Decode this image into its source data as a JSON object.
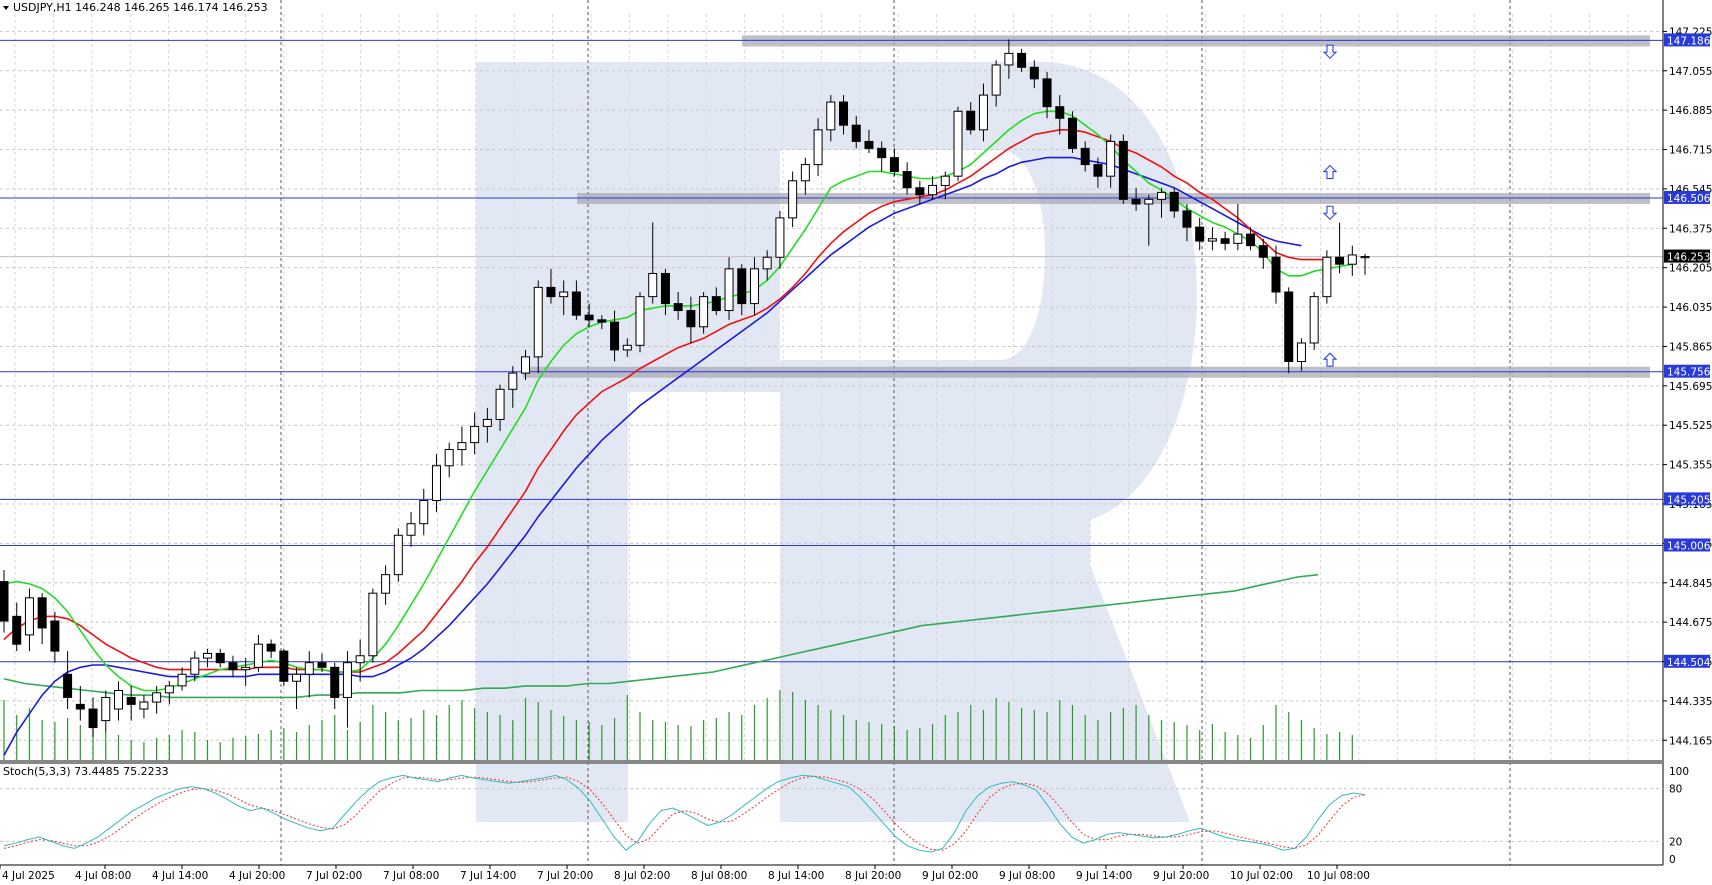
{
  "chart_title": "USDJPY,H1  146.248 146.265 146.174 146.253",
  "colors": {
    "hline": "#2a3ad8",
    "ma_fast": "#22dd22",
    "ma_mid": "#ee1111",
    "ma_slow": "#1a1ae0",
    "ma_long": "#33aa55",
    "volume": "#2a9a2a",
    "stoch_main": "#33bbbb",
    "stoch_signal": "#ee3333",
    "zone": "#a8aab4",
    "arrow": "#3344dd",
    "watermark": "#e2e8f3"
  },
  "chart_data": {
    "type": "candlestick",
    "symbol": "USDJPY",
    "timeframe": "H1",
    "ohlc_header": {
      "open": 146.248,
      "high": 146.265,
      "low": 146.174,
      "close": 146.253
    },
    "ylim": [
      144.08,
      147.3
    ],
    "y_ticks": [
      "147.225",
      "147.055",
      "146.885",
      "146.715",
      "146.545",
      "146.375",
      "146.205",
      "146.035",
      "145.865",
      "145.695",
      "145.525",
      "145.355",
      "145.185",
      "145.015",
      "144.845",
      "144.675",
      "144.505",
      "144.335",
      "144.165"
    ],
    "x_ticks": [
      "4 Jul 2025",
      "4 Jul 08:00",
      "4 Jul 14:00",
      "4 Jul 20:00",
      "7 Jul 02:00",
      "7 Jul 08:00",
      "7 Jul 14:00",
      "7 Jul 20:00",
      "8 Jul 02:00",
      "8 Jul 08:00",
      "8 Jul 14:00",
      "8 Jul 20:00",
      "9 Jul 02:00",
      "9 Jul 08:00",
      "9 Jul 14:00",
      "9 Jul 20:00",
      "10 Jul 02:00",
      "10 Jul 08:00"
    ],
    "level_lines": [
      "147.186",
      "146.506",
      "146.253",
      "145.756",
      "145.205",
      "145.006",
      "144.504"
    ],
    "current_price": "146.253",
    "candles": [
      [
        144.85,
        144.9,
        144.63,
        144.68
      ],
      [
        144.7,
        144.76,
        144.55,
        144.58
      ],
      [
        144.62,
        144.82,
        144.55,
        144.78
      ],
      [
        144.78,
        144.8,
        144.58,
        144.65
      ],
      [
        144.68,
        144.72,
        144.5,
        144.55
      ],
      [
        144.45,
        144.55,
        144.3,
        144.35
      ],
      [
        144.32,
        144.4,
        144.25,
        144.3
      ],
      [
        144.3,
        144.35,
        144.18,
        144.22
      ],
      [
        144.25,
        144.38,
        144.2,
        144.35
      ],
      [
        144.3,
        144.42,
        144.25,
        144.38
      ],
      [
        144.35,
        144.4,
        144.25,
        144.32
      ],
      [
        144.3,
        144.36,
        144.26,
        144.33
      ],
      [
        144.33,
        144.4,
        144.28,
        144.37
      ],
      [
        144.37,
        144.42,
        144.32,
        144.4
      ],
      [
        144.4,
        144.48,
        144.38,
        144.45
      ],
      [
        144.45,
        144.55,
        144.42,
        144.52
      ],
      [
        144.52,
        144.56,
        144.48,
        144.54
      ],
      [
        144.54,
        144.56,
        144.48,
        144.5
      ],
      [
        144.5,
        144.53,
        144.44,
        144.47
      ],
      [
        144.47,
        144.52,
        144.4,
        144.48
      ],
      [
        144.48,
        144.62,
        144.46,
        144.58
      ],
      [
        144.58,
        144.6,
        144.52,
        144.55
      ],
      [
        144.55,
        144.56,
        144.4,
        144.42
      ],
      [
        144.42,
        144.48,
        144.3,
        144.45
      ],
      [
        144.45,
        144.55,
        144.35,
        144.5
      ],
      [
        144.5,
        144.54,
        144.46,
        144.48
      ],
      [
        144.48,
        144.5,
        144.3,
        144.35
      ],
      [
        144.35,
        144.55,
        144.22,
        144.5
      ],
      [
        144.5,
        144.6,
        144.42,
        144.53
      ],
      [
        144.53,
        144.82,
        144.5,
        144.8
      ],
      [
        144.8,
        144.92,
        144.75,
        144.88
      ],
      [
        144.88,
        145.08,
        144.85,
        145.05
      ],
      [
        145.05,
        145.15,
        145.0,
        145.1
      ],
      [
        145.1,
        145.25,
        145.05,
        145.2
      ],
      [
        145.2,
        145.4,
        145.15,
        145.35
      ],
      [
        145.35,
        145.45,
        145.3,
        145.42
      ],
      [
        145.42,
        145.52,
        145.35,
        145.45
      ],
      [
        145.45,
        145.58,
        145.4,
        145.52
      ],
      [
        145.52,
        145.6,
        145.45,
        145.55
      ],
      [
        145.55,
        145.7,
        145.5,
        145.68
      ],
      [
        145.68,
        145.78,
        145.6,
        145.75
      ],
      [
        145.75,
        145.85,
        145.72,
        145.82
      ],
      [
        145.82,
        146.15,
        145.75,
        146.12
      ],
      [
        146.12,
        146.2,
        146.05,
        146.08
      ],
      [
        146.08,
        146.15,
        146.0,
        146.1
      ],
      [
        146.1,
        146.15,
        145.98,
        146.0
      ],
      [
        146.0,
        146.05,
        145.95,
        145.98
      ],
      [
        145.98,
        146.0,
        145.94,
        145.97
      ],
      [
        145.97,
        146.02,
        145.8,
        145.85
      ],
      [
        145.85,
        145.9,
        145.82,
        145.87
      ],
      [
        145.87,
        146.1,
        145.84,
        146.08
      ],
      [
        146.08,
        146.4,
        146.05,
        146.18
      ],
      [
        146.18,
        146.2,
        146.0,
        146.05
      ],
      [
        146.05,
        146.1,
        145.98,
        146.02
      ],
      [
        146.02,
        146.08,
        145.88,
        145.95
      ],
      [
        145.95,
        146.1,
        145.92,
        146.08
      ],
      [
        146.08,
        146.12,
        146.0,
        146.02
      ],
      [
        146.02,
        146.25,
        145.98,
        146.2
      ],
      [
        146.2,
        146.22,
        146.0,
        146.05
      ],
      [
        146.05,
        146.25,
        146.0,
        146.2
      ],
      [
        146.2,
        146.28,
        146.15,
        146.25
      ],
      [
        146.25,
        146.45,
        146.2,
        146.42
      ],
      [
        146.42,
        146.62,
        146.38,
        146.58
      ],
      [
        146.58,
        146.68,
        146.52,
        146.65
      ],
      [
        146.65,
        146.85,
        146.6,
        146.8
      ],
      [
        146.8,
        146.95,
        146.75,
        146.92
      ],
      [
        146.92,
        146.95,
        146.78,
        146.82
      ],
      [
        146.82,
        146.86,
        146.72,
        146.75
      ],
      [
        146.75,
        146.8,
        146.7,
        146.72
      ],
      [
        146.72,
        146.75,
        146.62,
        146.68
      ],
      [
        146.68,
        146.72,
        146.6,
        146.62
      ],
      [
        146.62,
        146.66,
        146.52,
        146.55
      ],
      [
        146.55,
        146.58,
        146.48,
        146.52
      ],
      [
        146.52,
        146.6,
        146.5,
        146.56
      ],
      [
        146.56,
        146.62,
        146.5,
        146.6
      ],
      [
        146.6,
        146.9,
        146.58,
        146.88
      ],
      [
        146.88,
        146.92,
        146.78,
        146.8
      ],
      [
        146.8,
        147.0,
        146.75,
        146.95
      ],
      [
        146.95,
        147.1,
        146.9,
        147.08
      ],
      [
        147.08,
        147.19,
        147.02,
        147.13
      ],
      [
        147.13,
        147.15,
        147.05,
        147.07
      ],
      [
        147.07,
        147.1,
        146.98,
        147.02
      ],
      [
        147.02,
        147.05,
        146.85,
        146.9
      ],
      [
        146.9,
        146.95,
        146.78,
        146.85
      ],
      [
        146.85,
        146.88,
        146.7,
        146.72
      ],
      [
        146.72,
        146.75,
        146.62,
        146.65
      ],
      [
        146.65,
        146.68,
        146.55,
        146.6
      ],
      [
        146.6,
        146.78,
        146.55,
        146.75
      ],
      [
        146.75,
        146.78,
        146.48,
        146.5
      ],
      [
        146.5,
        146.55,
        146.45,
        146.48
      ],
      [
        146.48,
        146.52,
        146.3,
        146.5
      ],
      [
        146.5,
        146.55,
        146.42,
        146.53
      ],
      [
        146.53,
        146.55,
        146.42,
        146.45
      ],
      [
        146.45,
        146.48,
        146.32,
        146.38
      ],
      [
        146.38,
        146.42,
        146.28,
        146.32
      ],
      [
        146.32,
        146.38,
        146.28,
        146.33
      ],
      [
        146.33,
        146.36,
        146.28,
        146.31
      ],
      [
        146.31,
        146.48,
        146.28,
        146.35
      ],
      [
        146.35,
        146.38,
        146.28,
        146.3
      ],
      [
        146.3,
        146.33,
        146.2,
        146.25
      ],
      [
        146.25,
        146.3,
        146.05,
        146.1
      ],
      [
        146.1,
        146.12,
        145.75,
        145.8
      ],
      [
        145.8,
        145.9,
        145.76,
        145.88
      ],
      [
        145.88,
        146.1,
        145.85,
        146.08
      ],
      [
        146.08,
        146.28,
        146.05,
        146.25
      ],
      [
        146.25,
        146.4,
        146.18,
        146.22
      ],
      [
        146.22,
        146.3,
        146.17,
        146.26
      ],
      [
        146.248,
        146.265,
        146.174,
        146.253
      ]
    ],
    "ma_fast_values": [
      144.84,
      144.85,
      144.84,
      144.82,
      144.78,
      144.72,
      144.64,
      144.56,
      144.49,
      144.44,
      144.4,
      144.38,
      144.38,
      144.39,
      144.41,
      144.43,
      144.45,
      144.47,
      144.48,
      144.49,
      144.5,
      144.51,
      144.5,
      144.48,
      144.47,
      144.47,
      144.46,
      144.46,
      144.47,
      144.52,
      144.58,
      144.66,
      144.75,
      144.84,
      144.94,
      145.04,
      145.14,
      145.24,
      145.33,
      145.42,
      145.51,
      145.6,
      145.72,
      145.8,
      145.87,
      145.92,
      145.95,
      145.97,
      145.98,
      145.99,
      146.02,
      146.03,
      146.04,
      146.04,
      146.04,
      146.05,
      146.06,
      146.08,
      146.09,
      146.11,
      146.15,
      146.21,
      146.29,
      146.37,
      146.46,
      146.55,
      146.58,
      146.6,
      146.62,
      146.62,
      146.61,
      146.6,
      146.59,
      146.59,
      146.6,
      146.62,
      146.65,
      146.7,
      146.75,
      146.8,
      146.84,
      146.87,
      146.88,
      146.88,
      146.86,
      146.82,
      146.78,
      146.73,
      146.67,
      146.62,
      146.57,
      146.54,
      146.5,
      146.46,
      146.43,
      146.4,
      146.38,
      146.35,
      146.32,
      146.27,
      146.2,
      146.17,
      146.17,
      146.19,
      146.2,
      146.21,
      146.22
    ],
    "ma_mid_values": [
      144.6,
      144.65,
      144.68,
      144.7,
      144.7,
      144.69,
      144.66,
      144.62,
      144.58,
      144.55,
      144.52,
      144.5,
      144.48,
      144.47,
      144.47,
      144.47,
      144.47,
      144.47,
      144.47,
      144.47,
      144.48,
      144.48,
      144.48,
      144.47,
      144.47,
      144.47,
      144.46,
      144.46,
      144.46,
      144.48,
      144.5,
      144.54,
      144.59,
      144.64,
      144.71,
      144.78,
      144.85,
      144.93,
      145.0,
      145.08,
      145.16,
      145.24,
      145.34,
      145.42,
      145.5,
      145.57,
      145.62,
      145.67,
      145.7,
      145.73,
      145.77,
      145.8,
      145.83,
      145.86,
      145.88,
      145.9,
      145.93,
      145.96,
      145.98,
      146.0,
      146.03,
      146.07,
      146.12,
      146.18,
      146.25,
      146.31,
      146.36,
      146.4,
      146.44,
      146.47,
      146.49,
      146.5,
      146.51,
      146.52,
      146.54,
      146.57,
      146.6,
      146.64,
      146.68,
      146.72,
      146.75,
      146.78,
      146.79,
      146.8,
      146.8,
      146.79,
      146.77,
      146.75,
      146.72,
      146.7,
      146.67,
      146.64,
      146.6,
      146.57,
      146.53,
      146.5,
      146.46,
      146.42,
      146.37,
      146.32,
      146.27,
      146.25,
      146.24,
      146.24,
      146.24
    ],
    "ma_slow_values": [
      144.1,
      144.2,
      144.28,
      144.36,
      144.42,
      144.46,
      144.48,
      144.49,
      144.49,
      144.48,
      144.47,
      144.46,
      144.45,
      144.44,
      144.44,
      144.44,
      144.44,
      144.44,
      144.44,
      144.44,
      144.45,
      144.45,
      144.45,
      144.45,
      144.45,
      144.45,
      144.45,
      144.45,
      144.44,
      144.44,
      144.46,
      144.49,
      144.52,
      144.56,
      144.61,
      144.66,
      144.72,
      144.78,
      144.84,
      144.91,
      144.98,
      145.05,
      145.13,
      145.2,
      145.27,
      145.34,
      145.4,
      145.46,
      145.51,
      145.56,
      145.61,
      145.65,
      145.69,
      145.73,
      145.77,
      145.81,
      145.85,
      145.89,
      145.93,
      145.97,
      146.01,
      146.06,
      146.11,
      146.16,
      146.21,
      146.26,
      146.3,
      146.34,
      146.38,
      146.41,
      146.44,
      146.46,
      146.48,
      146.5,
      146.52,
      146.54,
      146.56,
      146.59,
      146.61,
      146.64,
      146.66,
      146.67,
      146.68,
      146.68,
      146.68,
      146.67,
      146.66,
      146.65,
      146.63,
      146.61,
      146.59,
      146.57,
      146.55,
      146.52,
      146.49,
      146.46,
      146.43,
      146.4,
      146.37,
      146.34,
      146.32,
      146.31,
      146.3
    ],
    "ma_long_values": [
      144.43,
      144.41,
      144.4,
      144.39,
      144.38,
      144.37,
      144.36,
      144.36,
      144.35,
      144.35,
      144.35,
      144.35,
      144.35,
      144.35,
      144.35,
      144.36,
      144.36,
      144.37,
      144.37,
      144.37,
      144.38,
      144.38,
      144.38,
      144.39,
      144.39,
      144.4,
      144.4,
      144.4,
      144.41,
      144.41,
      144.42,
      144.43,
      144.44,
      144.45,
      144.46,
      144.48,
      144.5,
      144.52,
      144.54,
      144.56,
      144.58,
      144.6,
      144.62,
      144.64,
      144.66,
      144.67,
      144.68,
      144.69,
      144.7,
      144.71,
      144.72,
      144.73,
      144.74,
      144.75,
      144.76,
      144.77,
      144.78,
      144.79,
      144.8,
      144.81,
      144.83,
      144.85,
      144.87,
      144.88
    ],
    "volume_values": [
      60,
      45,
      52,
      40,
      38,
      42,
      35,
      30,
      28,
      25,
      20,
      18,
      22,
      25,
      30,
      28,
      20,
      18,
      22,
      24,
      26,
      30,
      32,
      28,
      35,
      40,
      45,
      30,
      38,
      55,
      48,
      40,
      42,
      50,
      45,
      55,
      60,
      52,
      48,
      45,
      40,
      62,
      58,
      50,
      44,
      40,
      38,
      35,
      42,
      65,
      48,
      40,
      38,
      35,
      34,
      40,
      42,
      48,
      45,
      55,
      62,
      70,
      68,
      60,
      55,
      50,
      45,
      40,
      38,
      36,
      34,
      30,
      32,
      36,
      45,
      48,
      55,
      50,
      62,
      58,
      52,
      50,
      48,
      60,
      55,
      45,
      40,
      48,
      52,
      55,
      45,
      40,
      38,
      35,
      30,
      36,
      28,
      25,
      22,
      35,
      55,
      48,
      40,
      32,
      26,
      28,
      25
    ],
    "stoch": {
      "label": "Stoch(5,3,3) 73.4485 75.2233",
      "levels": [
        "100",
        "80",
        "20",
        "0"
      ],
      "k_values": [
        15,
        18,
        22,
        25,
        20,
        15,
        12,
        18,
        25,
        35,
        45,
        55,
        62,
        70,
        75,
        80,
        82,
        80,
        75,
        68,
        60,
        55,
        58,
        52,
        45,
        40,
        35,
        32,
        35,
        50,
        65,
        78,
        88,
        92,
        95,
        92,
        90,
        88,
        92,
        95,
        92,
        90,
        88,
        86,
        88,
        90,
        92,
        95,
        90,
        80,
        65,
        45,
        25,
        10,
        20,
        40,
        55,
        58,
        52,
        45,
        38,
        42,
        50,
        60,
        70,
        80,
        88,
        92,
        95,
        94,
        90,
        86,
        82,
        70,
        55,
        40,
        25,
        15,
        10,
        8,
        12,
        30,
        55,
        72,
        82,
        86,
        88,
        84,
        78,
        60,
        40,
        25,
        18,
        22,
        28,
        30,
        28,
        26,
        24,
        25,
        28,
        32,
        35,
        30,
        25,
        22,
        20,
        18,
        15,
        10,
        12,
        25,
        45,
        62,
        72,
        75,
        73
      ]
    },
    "stoch_signal_values": [
      12,
      15,
      19,
      22,
      21,
      18,
      15,
      15,
      19,
      26,
      35,
      45,
      54,
      62,
      69,
      75,
      79,
      80,
      78,
      74,
      68,
      61,
      58,
      55,
      50,
      45,
      40,
      36,
      34,
      39,
      50,
      64,
      77,
      86,
      92,
      93,
      92,
      90,
      90,
      92,
      93,
      92,
      90,
      88,
      87,
      88,
      90,
      92,
      93,
      88,
      78,
      63,
      45,
      27,
      18,
      23,
      38,
      51,
      55,
      52,
      45,
      42,
      43,
      51,
      60,
      70,
      79,
      87,
      92,
      94,
      93,
      90,
      86,
      79,
      69,
      55,
      40,
      27,
      17,
      11,
      10,
      17,
      32,
      52,
      70,
      80,
      85,
      86,
      83,
      74,
      59,
      42,
      28,
      22,
      22,
      26,
      28,
      28,
      26,
      25,
      25,
      28,
      31,
      32,
      30,
      26,
      23,
      20,
      17,
      14,
      12,
      16,
      27,
      44,
      60,
      70,
      73
    ]
  },
  "watermark_letters": "R",
  "sr_arrows": [
    "up",
    "down",
    "up",
    "down",
    "up"
  ]
}
